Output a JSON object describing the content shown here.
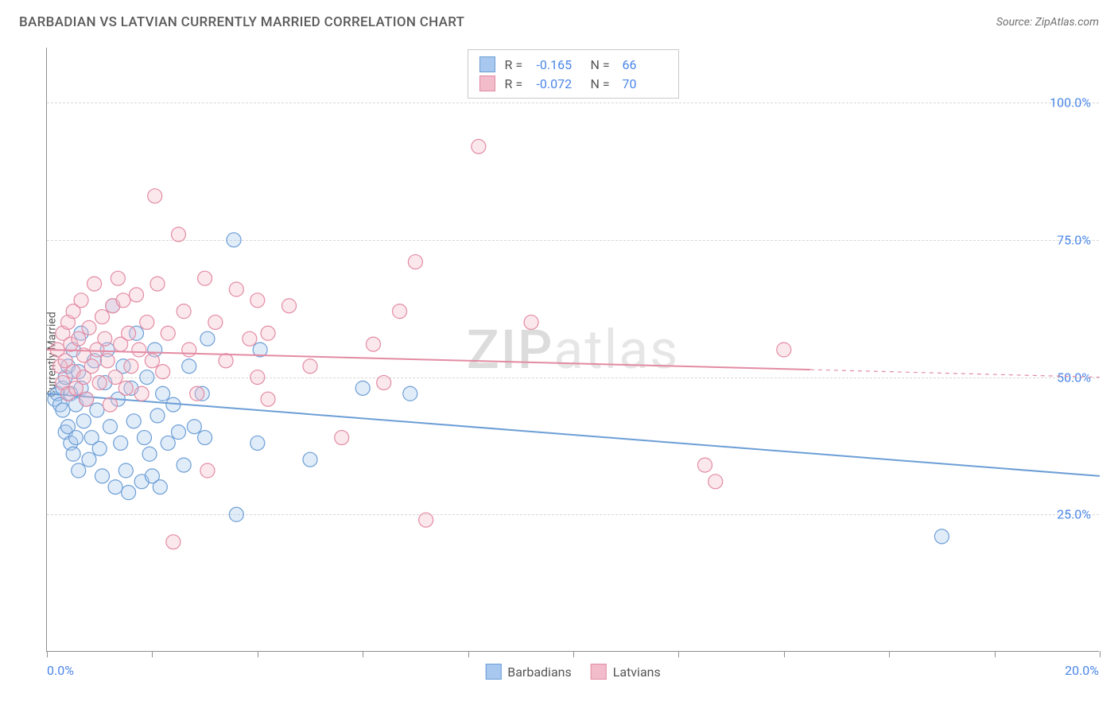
{
  "header": {
    "title": "BARBADIAN VS LATVIAN CURRENTLY MARRIED CORRELATION CHART",
    "source": "Source: ZipAtlas.com"
  },
  "chart": {
    "type": "scatter",
    "ylabel": "Currently Married",
    "xlim": [
      0,
      20
    ],
    "ylim": [
      0,
      110
    ],
    "y_gridlines": [
      25,
      50,
      75,
      100
    ],
    "y_tick_labels": [
      "25.0%",
      "50.0%",
      "75.0%",
      "100.0%"
    ],
    "x_ticks": [
      0,
      2,
      4,
      6,
      8,
      10,
      12,
      14,
      16,
      18,
      20
    ],
    "x_tick_labels": {
      "left": "0.0%",
      "right": "20.0%"
    },
    "grid_color": "#d8d8d8",
    "background_color": "#ffffff",
    "axis_color": "#909090",
    "label_color": "#555555",
    "tick_label_color": "#4a86e8",
    "marker_radius": 9,
    "marker_fill_opacity": 0.35,
    "marker_stroke_width": 1.2,
    "line_width": 2,
    "watermark": "ZIPatlas",
    "series": [
      {
        "name": "Barbadians",
        "color_fill": "#a8c8ef",
        "color_stroke": "#6c9ed6",
        "R": "-0.165",
        "N": "66",
        "trend": {
          "x1": 0,
          "y1": 47,
          "x2": 20,
          "y2": 32,
          "solid_to_x": 20
        },
        "points": [
          [
            0.15,
            46
          ],
          [
            0.2,
            47
          ],
          [
            0.25,
            45
          ],
          [
            0.3,
            48
          ],
          [
            0.3,
            44
          ],
          [
            0.35,
            50
          ],
          [
            0.35,
            40
          ],
          [
            0.4,
            52
          ],
          [
            0.4,
            41
          ],
          [
            0.45,
            38
          ],
          [
            0.45,
            47
          ],
          [
            0.5,
            55
          ],
          [
            0.5,
            36
          ],
          [
            0.55,
            45
          ],
          [
            0.55,
            39
          ],
          [
            0.6,
            51
          ],
          [
            0.6,
            33
          ],
          [
            0.65,
            48
          ],
          [
            0.65,
            58
          ],
          [
            0.7,
            42
          ],
          [
            0.75,
            46
          ],
          [
            0.8,
            35
          ],
          [
            0.85,
            39
          ],
          [
            0.9,
            53
          ],
          [
            0.95,
            44
          ],
          [
            1.0,
            37
          ],
          [
            1.05,
            32
          ],
          [
            1.1,
            49
          ],
          [
            1.15,
            55
          ],
          [
            1.2,
            41
          ],
          [
            1.25,
            63
          ],
          [
            1.3,
            30
          ],
          [
            1.35,
            46
          ],
          [
            1.4,
            38
          ],
          [
            1.45,
            52
          ],
          [
            1.5,
            33
          ],
          [
            1.55,
            29
          ],
          [
            1.6,
            48
          ],
          [
            1.65,
            42
          ],
          [
            1.7,
            58
          ],
          [
            1.8,
            31
          ],
          [
            1.85,
            39
          ],
          [
            1.9,
            50
          ],
          [
            1.95,
            36
          ],
          [
            2.0,
            32
          ],
          [
            2.05,
            55
          ],
          [
            2.1,
            43
          ],
          [
            2.15,
            30
          ],
          [
            2.2,
            47
          ],
          [
            2.3,
            38
          ],
          [
            2.4,
            45
          ],
          [
            2.5,
            40
          ],
          [
            2.6,
            34
          ],
          [
            2.7,
            52
          ],
          [
            2.8,
            41
          ],
          [
            2.95,
            47
          ],
          [
            3.0,
            39
          ],
          [
            3.05,
            57
          ],
          [
            3.55,
            75
          ],
          [
            3.6,
            25
          ],
          [
            4.0,
            38
          ],
          [
            4.05,
            55
          ],
          [
            5.0,
            35
          ],
          [
            6.0,
            48
          ],
          [
            6.9,
            47
          ],
          [
            17.0,
            21
          ]
        ]
      },
      {
        "name": "Latvians",
        "color_fill": "#f3bccb",
        "color_stroke": "#e38ba3",
        "R": "-0.072",
        "N": "70",
        "trend": {
          "x1": 0,
          "y1": 55,
          "x2": 20,
          "y2": 50,
          "solid_to_x": 14.5
        },
        "points": [
          [
            0.2,
            55
          ],
          [
            0.25,
            52
          ],
          [
            0.3,
            58
          ],
          [
            0.3,
            49
          ],
          [
            0.35,
            53
          ],
          [
            0.4,
            60
          ],
          [
            0.4,
            47
          ],
          [
            0.45,
            56
          ],
          [
            0.5,
            51
          ],
          [
            0.5,
            62
          ],
          [
            0.55,
            48
          ],
          [
            0.6,
            57
          ],
          [
            0.65,
            64
          ],
          [
            0.7,
            50
          ],
          [
            0.7,
            54
          ],
          [
            0.75,
            46
          ],
          [
            0.8,
            59
          ],
          [
            0.85,
            52
          ],
          [
            0.9,
            67
          ],
          [
            0.95,
            55
          ],
          [
            1.0,
            49
          ],
          [
            1.05,
            61
          ],
          [
            1.1,
            57
          ],
          [
            1.15,
            53
          ],
          [
            1.2,
            45
          ],
          [
            1.25,
            63
          ],
          [
            1.3,
            50
          ],
          [
            1.35,
            68
          ],
          [
            1.4,
            56
          ],
          [
            1.45,
            64
          ],
          [
            1.5,
            48
          ],
          [
            1.55,
            58
          ],
          [
            1.6,
            52
          ],
          [
            1.7,
            65
          ],
          [
            1.75,
            55
          ],
          [
            1.8,
            47
          ],
          [
            1.9,
            60
          ],
          [
            2.0,
            53
          ],
          [
            2.05,
            83
          ],
          [
            2.1,
            67
          ],
          [
            2.2,
            51
          ],
          [
            2.3,
            58
          ],
          [
            2.4,
            20
          ],
          [
            2.5,
            76
          ],
          [
            2.6,
            62
          ],
          [
            2.7,
            55
          ],
          [
            2.85,
            47
          ],
          [
            3.0,
            68
          ],
          [
            3.05,
            33
          ],
          [
            3.2,
            60
          ],
          [
            3.4,
            53
          ],
          [
            3.6,
            66
          ],
          [
            3.85,
            57
          ],
          [
            4.0,
            50
          ],
          [
            4.0,
            64
          ],
          [
            4.2,
            58
          ],
          [
            4.2,
            46
          ],
          [
            4.6,
            63
          ],
          [
            5.0,
            52
          ],
          [
            5.6,
            39
          ],
          [
            6.2,
            56
          ],
          [
            6.4,
            49
          ],
          [
            6.7,
            62
          ],
          [
            7.0,
            71
          ],
          [
            7.2,
            24
          ],
          [
            8.2,
            92
          ],
          [
            9.2,
            60
          ],
          [
            12.5,
            34
          ],
          [
            12.7,
            31
          ],
          [
            14.0,
            55
          ]
        ]
      }
    ]
  },
  "legend": {
    "series1_name": "Barbadians",
    "series2_name": "Latvians"
  }
}
